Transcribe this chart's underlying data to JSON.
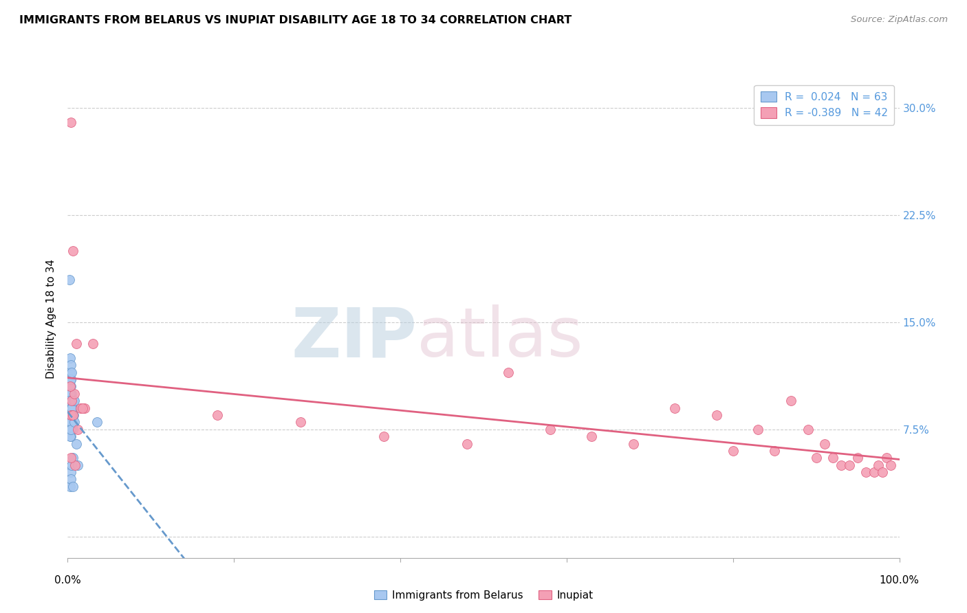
{
  "title": "IMMIGRANTS FROM BELARUS VS INUPIAT DISABILITY AGE 18 TO 34 CORRELATION CHART",
  "source": "Source: ZipAtlas.com",
  "ylabel": "Disability Age 18 to 34",
  "legend_label1": "Immigrants from Belarus",
  "legend_label2": "Inupiat",
  "r1": 0.024,
  "n1": 63,
  "r2": -0.389,
  "n2": 42,
  "xlim": [
    0.0,
    100.0
  ],
  "ylim": [
    -1.5,
    32.0
  ],
  "yticks": [
    0.0,
    7.5,
    15.0,
    22.5,
    30.0
  ],
  "ytick_labels": [
    "",
    "7.5%",
    "15.0%",
    "22.5%",
    "30.0%"
  ],
  "color_blue": "#A8C8F0",
  "color_pink": "#F4A0B5",
  "color_blue_edge": "#6699CC",
  "color_pink_edge": "#E06080",
  "color_blue_line": "#6699CC",
  "color_pink_line": "#E06080",
  "background_color": "#FFFFFF",
  "grid_color": "#CCCCCC",
  "blue_scatter_x": [
    0.2,
    0.3,
    0.3,
    0.4,
    0.4,
    0.4,
    0.4,
    0.5,
    0.5,
    0.5,
    0.5,
    0.5,
    0.5,
    0.6,
    0.6,
    0.6,
    0.6,
    0.7,
    0.7,
    0.3,
    0.4,
    0.3,
    0.5,
    0.4,
    0.3,
    0.2,
    0.3,
    0.4,
    0.5,
    0.4,
    0.3,
    0.4,
    0.2,
    0.4,
    0.3,
    0.5,
    0.3,
    0.4,
    0.3,
    0.4,
    0.3,
    0.4,
    0.5,
    0.4,
    0.5,
    0.4,
    0.3,
    0.4,
    0.8,
    0.5,
    0.8,
    0.4,
    0.5,
    0.5,
    0.4,
    0.5,
    0.3,
    0.4,
    0.6,
    3.5,
    0.6,
    1.0,
    1.2
  ],
  "blue_scatter_y": [
    18.0,
    12.5,
    11.5,
    12.0,
    11.0,
    10.5,
    9.5,
    10.0,
    9.5,
    9.0,
    9.0,
    8.5,
    8.5,
    9.0,
    8.5,
    8.0,
    7.5,
    8.5,
    9.5,
    10.0,
    8.5,
    9.0,
    8.0,
    7.5,
    7.5,
    9.0,
    8.0,
    7.5,
    8.0,
    7.5,
    9.0,
    8.5,
    9.5,
    7.0,
    8.0,
    8.5,
    8.0,
    7.5,
    7.5,
    9.0,
    8.0,
    8.5,
    8.0,
    7.5,
    9.0,
    8.0,
    7.0,
    7.5,
    9.5,
    8.5,
    8.0,
    11.0,
    11.5,
    5.0,
    4.5,
    5.0,
    3.5,
    4.0,
    5.5,
    8.0,
    3.5,
    6.5,
    5.0
  ],
  "pink_scatter_x": [
    0.4,
    0.6,
    1.0,
    2.0,
    0.5,
    0.4,
    1.5,
    0.8,
    0.3,
    1.2,
    0.6,
    1.8,
    0.9,
    0.4,
    3.0,
    18.0,
    28.0,
    38.0,
    48.0,
    53.0,
    58.0,
    63.0,
    68.0,
    73.0,
    78.0,
    80.0,
    83.0,
    85.0,
    87.0,
    89.0,
    90.0,
    91.0,
    92.0,
    93.0,
    94.0,
    95.0,
    96.0,
    97.0,
    97.5,
    98.0,
    98.5,
    99.0
  ],
  "pink_scatter_y": [
    29.0,
    20.0,
    13.5,
    9.0,
    9.5,
    8.5,
    9.0,
    10.0,
    10.5,
    7.5,
    8.5,
    9.0,
    5.0,
    5.5,
    13.5,
    8.5,
    8.0,
    7.0,
    6.5,
    11.5,
    7.5,
    7.0,
    6.5,
    9.0,
    8.5,
    6.0,
    7.5,
    6.0,
    9.5,
    7.5,
    5.5,
    6.5,
    5.5,
    5.0,
    5.0,
    5.5,
    4.5,
    4.5,
    5.0,
    4.5,
    5.5,
    5.0
  ]
}
